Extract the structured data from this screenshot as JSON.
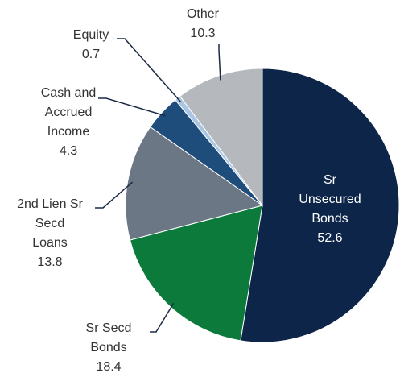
{
  "chart_data": {
    "type": "pie",
    "categories": [
      "Sr\nUnsecured\nBonds",
      "Sr Secd\nBonds",
      "2nd Lien Sr\nSecd\nLoans",
      "Cash and\nAccrued\nIncome",
      "Equity",
      "Other"
    ],
    "values": [
      52.6,
      18.4,
      13.8,
      4.3,
      0.7,
      10.3
    ],
    "colors": [
      "#0c2548",
      "#0b7a3b",
      "#6b7785",
      "#1e4d7b",
      "#a9c6e4",
      "#b5b9be"
    ]
  }
}
